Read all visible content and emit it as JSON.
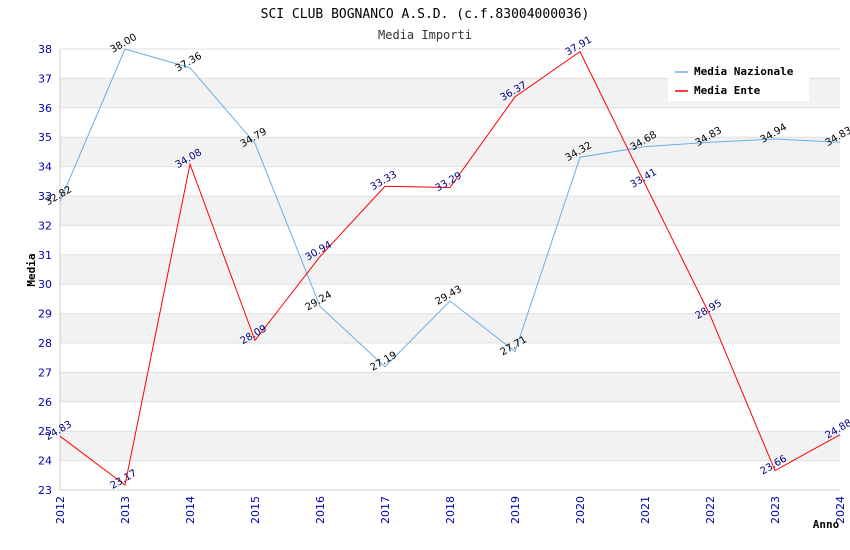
{
  "chart_data": {
    "type": "line",
    "title": "SCI CLUB BOGNANCO A.S.D. (c.f.83004000036)",
    "subtitle": "Media Importi",
    "xlabel": "Anno",
    "ylabel": "Media",
    "categories": [
      "2012",
      "2013",
      "2014",
      "2015",
      "2016",
      "2017",
      "2018",
      "2019",
      "2020",
      "2021",
      "2022",
      "2023",
      "2024"
    ],
    "yticks": [
      "23",
      "24",
      "25",
      "26",
      "27",
      "28",
      "29",
      "30",
      "31",
      "32",
      "33",
      "34",
      "35",
      "36",
      "37",
      "38"
    ],
    "ylim": [
      23,
      38
    ],
    "legend_position": "top-right",
    "series": [
      {
        "name": "Media Nazionale",
        "color": "#6aaee8",
        "values": [
          32.82,
          38.0,
          37.36,
          34.79,
          29.24,
          27.19,
          29.43,
          27.71,
          34.32,
          34.68,
          34.83,
          34.94,
          34.83
        ],
        "labels": [
          "32.82",
          "38.00",
          "37.36",
          "34.79",
          "29.24",
          "27.19",
          "29.43",
          "27.71",
          "34.32",
          "34.68",
          "34.83",
          "34.94",
          "34.83"
        ]
      },
      {
        "name": "Media Ente",
        "color": "#ff0000",
        "values": [
          24.83,
          23.17,
          34.08,
          28.09,
          30.94,
          33.33,
          33.29,
          36.37,
          37.91,
          33.41,
          28.95,
          23.66,
          24.88
        ],
        "labels": [
          "24.83",
          "23.17",
          "34.08",
          "28.09",
          "30.94",
          "33.33",
          "33.29",
          "36.37",
          "37.91",
          "33.41",
          "28.95",
          "23.66",
          "24.88"
        ]
      }
    ]
  }
}
